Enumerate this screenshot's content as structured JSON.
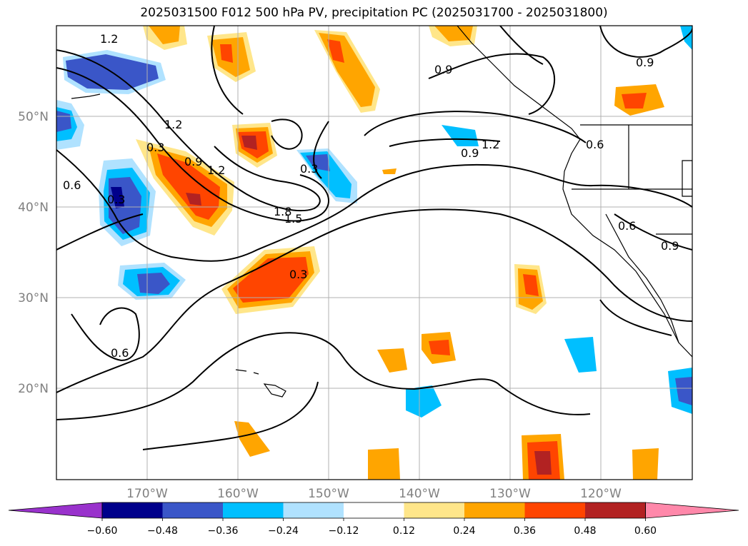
{
  "title": "2025031500 F012 500 hPa PV, precipitation PC (2025031700 - 2025031800)",
  "map": {
    "projection": "equirectangular",
    "lon_range": [
      -180,
      -110
    ],
    "lat_range": [
      10,
      60
    ],
    "lon_ticks": [
      {
        "lon": -170,
        "label": "170°W"
      },
      {
        "lon": -160,
        "label": "160°W"
      },
      {
        "lon": -150,
        "label": "150°W"
      },
      {
        "lon": -140,
        "label": "140°W"
      },
      {
        "lon": -130,
        "label": "130°W"
      },
      {
        "lon": -120,
        "label": "120°W"
      }
    ],
    "lat_ticks": [
      {
        "lat": 50,
        "label": "50°N"
      },
      {
        "lat": 40,
        "label": "40°N"
      },
      {
        "lat": 30,
        "label": "30°N"
      },
      {
        "lat": 20,
        "label": "20°N"
      }
    ],
    "grid": true
  },
  "colorbar": {
    "ticks": [
      "−0.60",
      "−0.48",
      "−0.36",
      "−0.24",
      "−0.12",
      "0.12",
      "0.24",
      "0.36",
      "0.48",
      "0.60"
    ],
    "colors": [
      "#9932cc",
      "#00008b",
      "#3a56c8",
      "#00bfff",
      "#b0e2ff",
      "#ffffff",
      "#ffe68a",
      "#ffa500",
      "#ff4500",
      "#b22222",
      "#ff88aa"
    ],
    "extend": "both"
  },
  "contour_labels": [
    "1.2",
    "0.9",
    "0.9",
    "1.2",
    "0.3",
    "0.9",
    "1.2",
    "0.3",
    "0.9",
    "1.2",
    "0.6",
    "0.3",
    "1.8",
    "1.5",
    "0.3",
    "0.6",
    "0.6",
    "0.9",
    "0.6"
  ]
}
